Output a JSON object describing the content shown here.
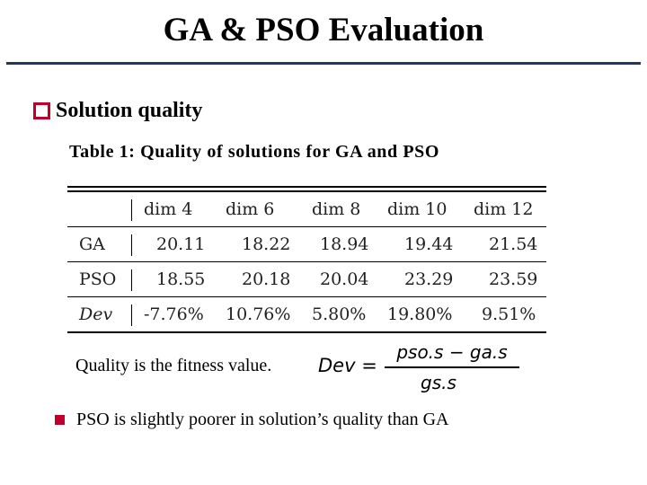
{
  "slide": {
    "title": "GA & PSO Evaluation",
    "bullet": "Solution quality",
    "note": "PSO is slightly poorer in solution’s quality than GA"
  },
  "table": {
    "caption": "Table 1:  Quality of solutions for GA and PSO",
    "columns": [
      "dim 4",
      "dim 6",
      "dim 8",
      "dim 10",
      "dim 12"
    ],
    "rows": [
      {
        "label": "GA",
        "values": [
          "20.11",
          "18.22",
          "18.94",
          "19.44",
          "21.54"
        ]
      },
      {
        "label": "PSO",
        "values": [
          "18.55",
          "20.18",
          "20.04",
          "23.29",
          "23.59"
        ]
      },
      {
        "label": "Dev",
        "values": [
          "-7.76%",
          "10.76%",
          "5.80%",
          "19.80%",
          "9.51%"
        ]
      }
    ]
  },
  "formula": {
    "text": "Quality is the fitness value.",
    "lhs": "Dev =",
    "numerator": "pso.s − ga.s",
    "denominator": "gs.s"
  },
  "colors": {
    "accent": "#c0002a",
    "rule": "#1f3a5c"
  }
}
